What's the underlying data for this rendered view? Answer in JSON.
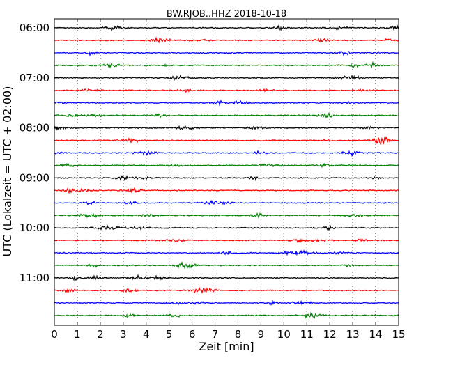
{
  "chart_data": {
    "type": "line",
    "title": "BW.RJOB..HHZ 2018-10-18",
    "xlabel": "Zeit  [min]",
    "ylabel": "UTC (Lokalzeit = UTC + 02:00)",
    "xlim": [
      0,
      15
    ],
    "x_ticks": [
      "0",
      "1",
      "2",
      "3",
      "4",
      "5",
      "6",
      "7",
      "8",
      "9",
      "10",
      "11",
      "12",
      "13",
      "14",
      "15"
    ],
    "y_ticks": [
      {
        "label": "06:00",
        "row": 0
      },
      {
        "label": "07:00",
        "row": 4
      },
      {
        "label": "08:00",
        "row": 8
      },
      {
        "label": "09:00",
        "row": 12
      },
      {
        "label": "10:00",
        "row": 16
      },
      {
        "label": "11:00",
        "row": 20
      }
    ],
    "grid": {
      "vertical_dotted": true
    },
    "trace_colors": [
      "#000000",
      "#ff0000",
      "#0000ff",
      "#008000"
    ],
    "traces": [
      {
        "start": "06:00",
        "color": "#000000"
      },
      {
        "start": "06:15",
        "color": "#ff0000"
      },
      {
        "start": "06:30",
        "color": "#0000ff"
      },
      {
        "start": "06:45",
        "color": "#008000"
      },
      {
        "start": "07:00",
        "color": "#000000"
      },
      {
        "start": "07:15",
        "color": "#ff0000"
      },
      {
        "start": "07:30",
        "color": "#0000ff"
      },
      {
        "start": "07:45",
        "color": "#008000"
      },
      {
        "start": "08:00",
        "color": "#000000"
      },
      {
        "start": "08:15",
        "color": "#ff0000"
      },
      {
        "start": "08:30",
        "color": "#0000ff"
      },
      {
        "start": "08:45",
        "color": "#008000"
      },
      {
        "start": "09:00",
        "color": "#000000"
      },
      {
        "start": "09:15",
        "color": "#ff0000"
      },
      {
        "start": "09:30",
        "color": "#0000ff"
      },
      {
        "start": "09:45",
        "color": "#008000"
      },
      {
        "start": "10:00",
        "color": "#000000"
      },
      {
        "start": "10:15",
        "color": "#ff0000"
      },
      {
        "start": "10:30",
        "color": "#0000ff"
      },
      {
        "start": "10:45",
        "color": "#008000"
      },
      {
        "start": "11:00",
        "color": "#000000"
      },
      {
        "start": "11:15",
        "color": "#ff0000"
      },
      {
        "start": "11:30",
        "color": "#0000ff"
      },
      {
        "start": "11:45",
        "color": "#008000"
      }
    ]
  }
}
